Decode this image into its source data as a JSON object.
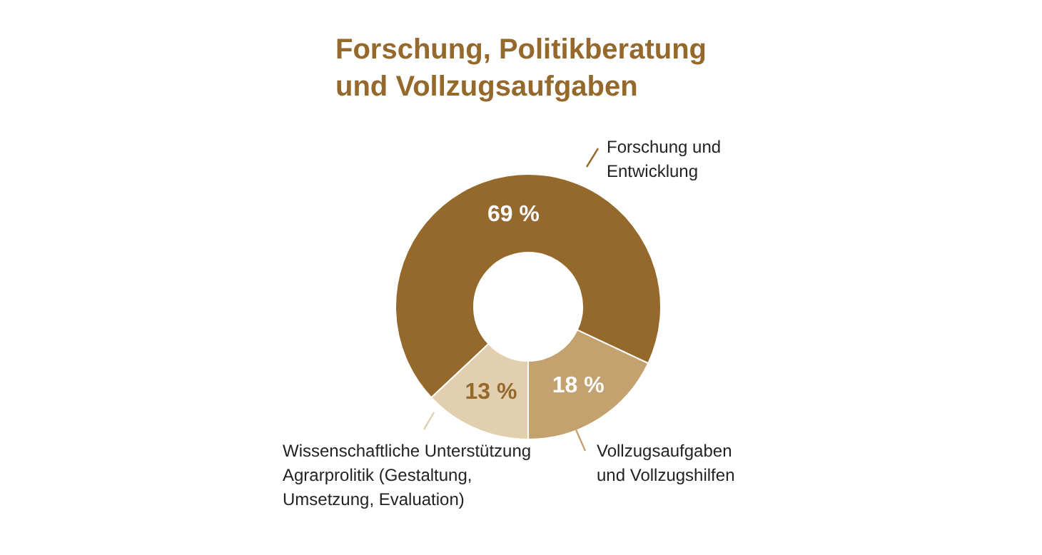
{
  "chart_data": {
    "type": "donut",
    "title": "Forschung, Politikberatung und Vollzugsaufgaben",
    "categories": [
      "Vollzugsaufgaben und Vollzugshilfen",
      "Forschung und Entwicklung",
      "Wissenschaftliche Unterstützung Agrarprolitik (Gestaltung, Umsetzung, Evaluation)"
    ],
    "values": [
      18,
      69,
      13
    ],
    "colors": [
      "#c4a26f",
      "#94692b",
      "#e2cfb0"
    ],
    "value_labels": [
      "18 %",
      "69 %",
      "13 %"
    ]
  }
}
